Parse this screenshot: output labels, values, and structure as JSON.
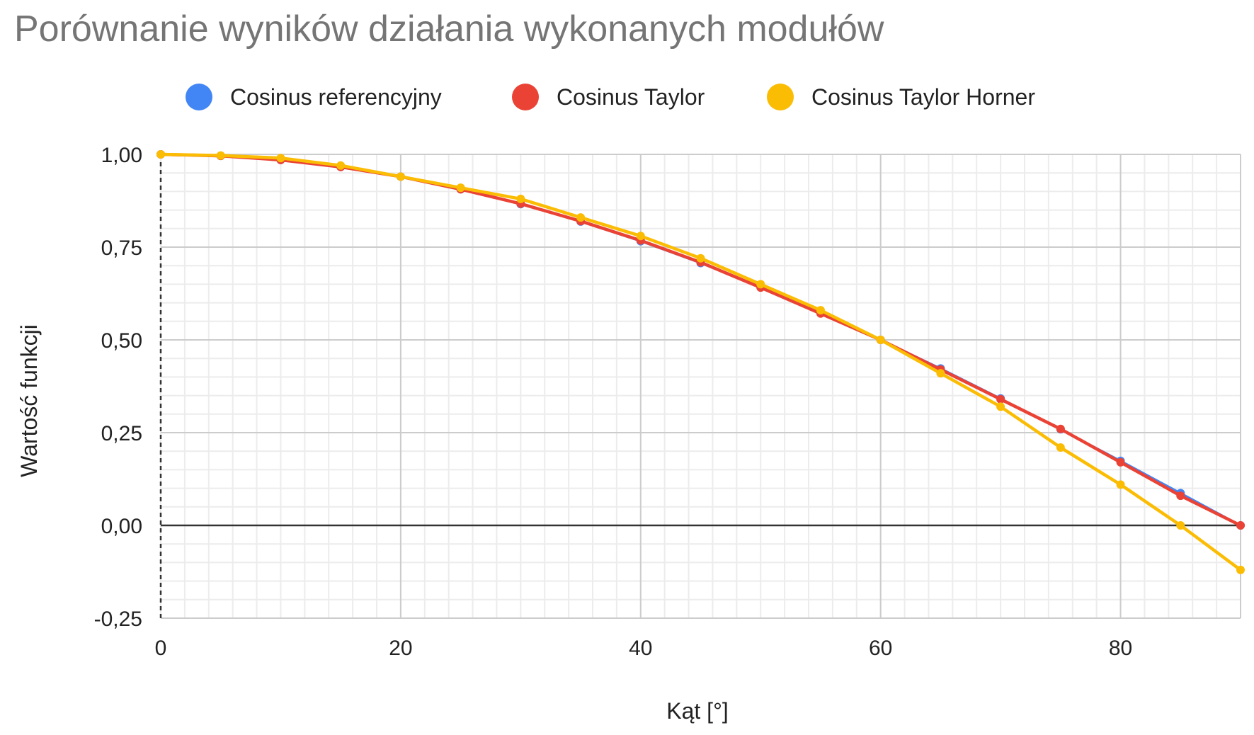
{
  "chart_data": {
    "type": "line",
    "title": "Porównanie wyników działania wykonanych modułów",
    "xlabel": "Kąt [°]",
    "ylabel": "Wartość funkcji",
    "xlim": [
      0,
      90
    ],
    "ylim": [
      -0.25,
      1.0
    ],
    "x_ticks": [
      0,
      20,
      40,
      60,
      80
    ],
    "x_tick_labels": [
      "0",
      "20",
      "40",
      "60",
      "80"
    ],
    "y_ticks": [
      1.0,
      0.75,
      0.5,
      0.25,
      0.0,
      -0.25
    ],
    "y_tick_labels": [
      "1,00",
      "0,75",
      "0,50",
      "0,25",
      "0,00",
      "-0,25"
    ],
    "grid": true,
    "legend_position": "top",
    "x": [
      0,
      5,
      10,
      15,
      20,
      25,
      30,
      35,
      40,
      45,
      50,
      55,
      60,
      65,
      70,
      75,
      80,
      85,
      90
    ],
    "series": [
      {
        "name": "Cosinus referencyjny",
        "color": "#4285F4",
        "values": [
          1.0,
          0.996,
          0.985,
          0.966,
          0.94,
          0.906,
          0.866,
          0.819,
          0.766,
          0.707,
          0.643,
          0.574,
          0.5,
          0.423,
          0.342,
          0.259,
          0.174,
          0.087,
          0.0
        ]
      },
      {
        "name": "Cosinus Taylor",
        "color": "#EA4335",
        "values": [
          1.0,
          0.996,
          0.985,
          0.966,
          0.94,
          0.906,
          0.867,
          0.82,
          0.768,
          0.709,
          0.641,
          0.571,
          0.5,
          0.42,
          0.34,
          0.26,
          0.17,
          0.08,
          0.0
        ]
      },
      {
        "name": "Cosinus Taylor Horner",
        "color": "#FBBC04",
        "values": [
          1.0,
          0.997,
          0.99,
          0.97,
          0.94,
          0.91,
          0.88,
          0.83,
          0.78,
          0.72,
          0.65,
          0.58,
          0.5,
          0.41,
          0.32,
          0.21,
          0.11,
          0.0,
          -0.12
        ]
      }
    ]
  }
}
